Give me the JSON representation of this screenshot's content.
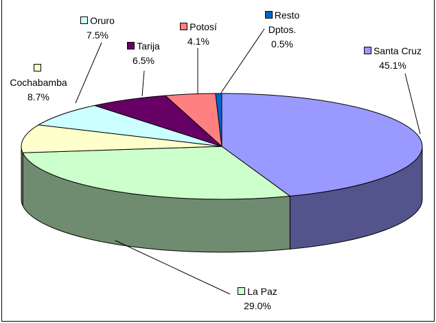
{
  "chart_data": {
    "type": "pie",
    "categories": [
      "Santa Cruz",
      "La Paz",
      "Cochabamba",
      "Oruro",
      "Tarija",
      "Potosí",
      "Resto Dptos."
    ],
    "values": [
      45.1,
      29.0,
      8.7,
      7.5,
      6.5,
      4.1,
      0.5
    ],
    "value_labels": [
      "45.1%",
      "29.0%",
      "8.7%",
      "7.5%",
      "6.5%",
      "4.1%",
      "0.5%"
    ],
    "colors": [
      "#9999ff",
      "#ccffcc",
      "#ffffcc",
      "#ccffff",
      "#660066",
      "#ff8080",
      "#0066cc"
    ]
  }
}
